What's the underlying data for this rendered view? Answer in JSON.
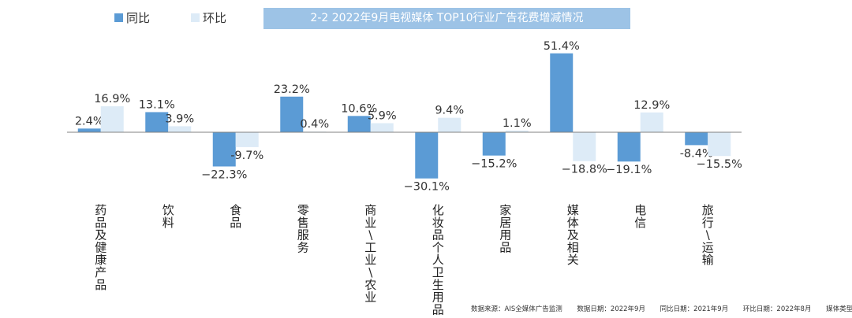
{
  "legend": {
    "yoy_label": "同比",
    "mom_label": "环比"
  },
  "title": "2-2 2022年9月电视媒体 TOP10行业广告花费增减情况",
  "colors": {
    "yoy": "#5b9bd5",
    "mom": "#ddebf7",
    "title_bg": "#9dc3e6",
    "baseline": "#808080"
  },
  "chart_data": {
    "type": "bar",
    "title": "2-2 2022年9月电视媒体 TOP10行业广告花费增减情况",
    "categories": [
      "药品及健康产品",
      "饮料",
      "食品",
      "零售服务",
      "商业/工业/农业",
      "化妆品个人卫生用品",
      "家居用品",
      "媒体及相关",
      "电信",
      "旅行运输"
    ],
    "category_labels": [
      "药品及健康产品",
      "饮料",
      "食品",
      "零售服务",
      "商业\\工业\\农业",
      "化妆品个人卫生用品",
      "家居用品",
      "媒体及相关",
      "电信",
      "旅行\\运输"
    ],
    "series": [
      {
        "name": "同比",
        "values": [
          2.4,
          13.1,
          -22.3,
          23.2,
          10.6,
          -30.1,
          -15.2,
          51.4,
          -19.1,
          -8.4
        ]
      },
      {
        "name": "环比",
        "values": [
          16.9,
          3.9,
          -9.7,
          0.4,
          5.9,
          9.4,
          1.1,
          -18.8,
          12.9,
          -15.5
        ]
      }
    ],
    "value_labels": [
      [
        "2.4%",
        "13.1%",
        "−22.3%",
        "23.2%",
        "10.6%",
        "−30.1%",
        "−15.2%",
        "51.4%",
        "−19.1%",
        "-8.4%"
      ],
      [
        "16.9%",
        "3.9%",
        "-9.7%",
        "0.4%",
        "5.9%",
        "9.4%",
        "1.1%",
        "−18.8%",
        "12.9%",
        "−15.5%"
      ]
    ],
    "unit": "%",
    "grid": false,
    "legend_position": "top-left"
  },
  "footer": {
    "source": "数据来源：AIS全媒体广告监测",
    "data_date": "数据日期：2022年9月",
    "yoy_date": "同比日期：2021年9月",
    "mom_date": "环比日期：2022年8月",
    "media_type": "媒体类型：电视"
  }
}
